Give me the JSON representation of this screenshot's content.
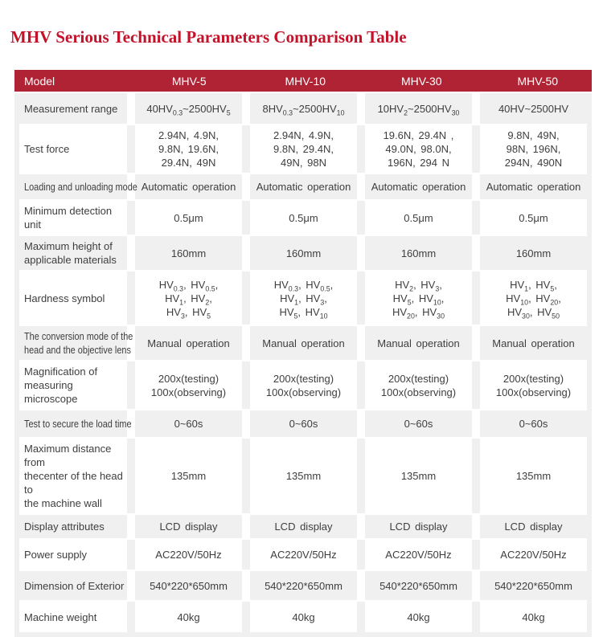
{
  "page": {
    "title": "MHV Serious Technical Parameters Comparison Table"
  },
  "colors": {
    "title_red": "#c2132a",
    "header_bg": "#b02334",
    "header_text": "#ffffff",
    "row_gray": "#f0f0f0",
    "row_white": "#ffffff",
    "cell_text": "#3e3e3e"
  },
  "table": {
    "header": [
      "Model",
      "MHV-5",
      "MHV-10",
      "MHV-30",
      "MHV-50"
    ],
    "rows": [
      {
        "label": "Measurement range",
        "values": [
          [
            "40HV{0.3}~2500HV{5}"
          ],
          [
            "8HV{0.3}~2500HV{10}"
          ],
          [
            "10HV{2}~2500HV{30}"
          ],
          [
            "40HV~2500HV"
          ]
        ]
      },
      {
        "label": "Test force",
        "values": [
          [
            "2.94N, 4.9N,",
            "9.8N, 19.6N,",
            "29.4N, 49N"
          ],
          [
            "2.94N, 4.9N,",
            "9.8N, 29.4N,",
            "49N, 98N"
          ],
          [
            "19.6N, 29.4N ,",
            "49.0N, 98.0N,",
            "196N, 294 N"
          ],
          [
            "9.8N, 49N,",
            "98N, 196N,",
            "294N, 490N"
          ]
        ]
      },
      {
        "label": "Loading and unloading mode",
        "condensed": true,
        "values": [
          [
            "Automatic operation"
          ],
          [
            "Automatic operation"
          ],
          [
            "Automatic operation"
          ],
          [
            "Automatic operation"
          ]
        ]
      },
      {
        "label": "Minimum detection unit",
        "values": [
          [
            "0.5μm"
          ],
          [
            "0.5μm"
          ],
          [
            "0.5μm"
          ],
          [
            "0.5μm"
          ]
        ]
      },
      {
        "label": "Maximum height of\napplicable materials",
        "values": [
          [
            "160mm"
          ],
          [
            "160mm"
          ],
          [
            "160mm"
          ],
          [
            "160mm"
          ]
        ]
      },
      {
        "label": "Hardness symbol",
        "values": [
          [
            "HV{0.3}, HV{0.5},",
            "HV{1}, HV{2},",
            "HV{3}, HV{5}"
          ],
          [
            "HV{0.3}, HV{0.5},",
            "HV{1}, HV{3},",
            "HV{5}, HV{10}"
          ],
          [
            "HV{2}, HV{3},",
            "HV{5}, HV{10},",
            "HV{20}, HV{30}"
          ],
          [
            "HV{1}, HV{5},",
            "HV{10}, HV{20},",
            "HV{30}, HV{50}"
          ]
        ]
      },
      {
        "label": "The conversion mode of the\nhead and the objective lens",
        "condensed": true,
        "values": [
          [
            "Manual operation"
          ],
          [
            "Manual operation"
          ],
          [
            "Manual operation"
          ],
          [
            "Manual operation"
          ]
        ]
      },
      {
        "label": "Magnification of\nmeasuring microscope",
        "values": [
          [
            "200x(testing)",
            "100x(observing)"
          ],
          [
            "200x(testing)",
            "100x(observing)"
          ],
          [
            "200x(testing)",
            "100x(observing)"
          ],
          [
            "200x(testing)",
            "100x(observing)"
          ]
        ]
      },
      {
        "label": "Test to secure the load time",
        "condensed": true,
        "values": [
          [
            "0~60s"
          ],
          [
            "0~60s"
          ],
          [
            "0~60s"
          ],
          [
            "0~60s"
          ]
        ]
      },
      {
        "label": "Maximum distance from\nthecenter of the head to\nthe machine wall",
        "values": [
          [
            "135mm"
          ],
          [
            "135mm"
          ],
          [
            "135mm"
          ],
          [
            "135mm"
          ]
        ]
      },
      {
        "label": "Display attributes",
        "values": [
          [
            "LCD display"
          ],
          [
            "LCD display"
          ],
          [
            "LCD display"
          ],
          [
            "LCD display"
          ]
        ]
      },
      {
        "label": "Power supply",
        "values": [
          [
            "AC220V/50Hz"
          ],
          [
            "AC220V/50Hz"
          ],
          [
            "AC220V/50Hz"
          ],
          [
            "AC220V/50Hz"
          ]
        ]
      },
      {
        "label": "Dimension of Exterior",
        "values": [
          [
            "540*220*650mm"
          ],
          [
            "540*220*650mm"
          ],
          [
            "540*220*650mm"
          ],
          [
            "540*220*650mm"
          ]
        ]
      },
      {
        "label": "Machine weight",
        "values": [
          [
            "40kg"
          ],
          [
            "40kg"
          ],
          [
            "40kg"
          ],
          [
            "40kg"
          ]
        ]
      }
    ]
  }
}
